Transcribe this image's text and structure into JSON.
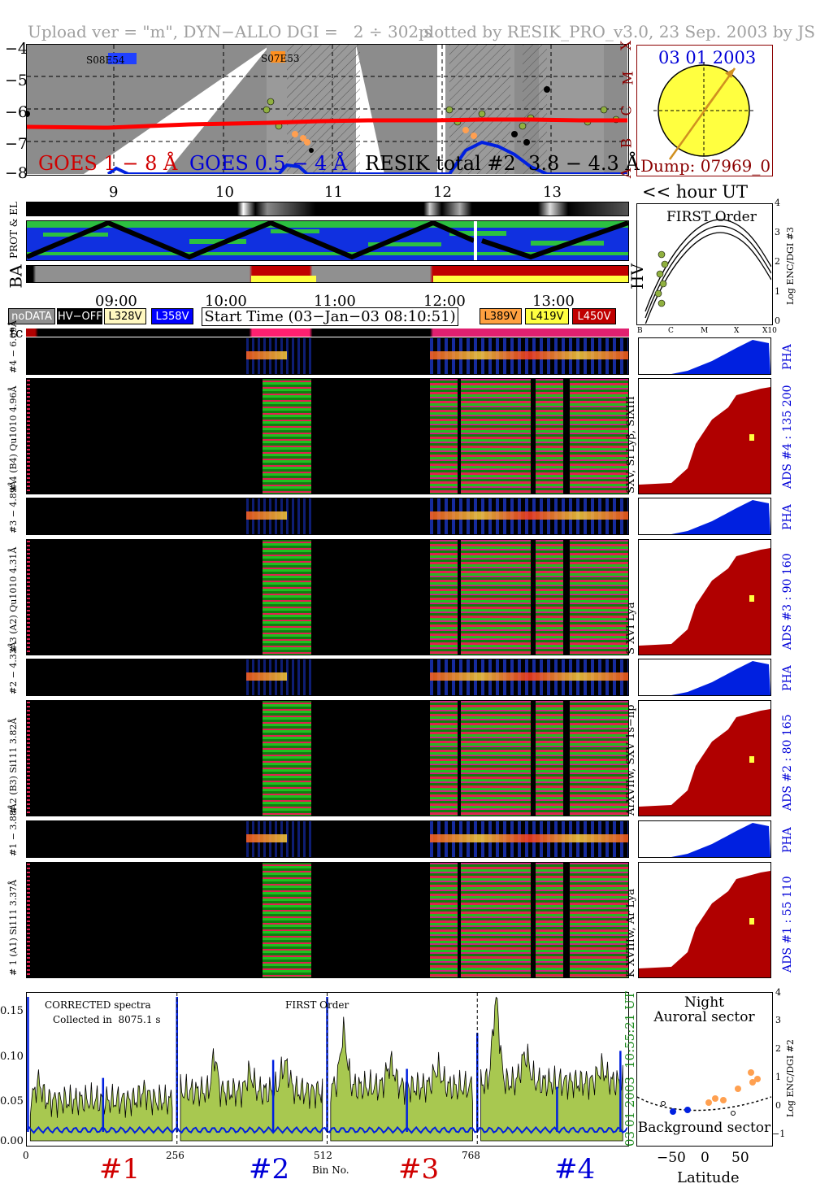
{
  "header": {
    "upload": "Upload ver = \"m\", DYN−ALLO DGI =   2 ÷ 302 s",
    "plotted": "plotted by RESIK_PRO_v3.0, 23 Sep. 2003 by JS"
  },
  "goes": {
    "y_ticks": [
      "−4",
      "−5",
      "−6",
      "−7",
      "−8"
    ],
    "class_letters": [
      "X",
      "M",
      "C",
      "B",
      "A"
    ],
    "labels": {
      "g18": "GOES 1 − 8 Å",
      "g054": "GOES 0.5 − 4 Å",
      "resik": "RESIK total #2  3.8 − 4.3 Å"
    },
    "saa1": "S08E54",
    "saa2": "S07E53",
    "hour_ticks": [
      "9",
      "10",
      "11",
      "12",
      "13"
    ],
    "hour_label": "<< hour UT",
    "colors": {
      "goes18": "#ff0000",
      "goes054": "#0020e0",
      "resik": "#90b040"
    }
  },
  "sun": {
    "date": "03 01 2003",
    "dump": "Dump: 07969_0"
  },
  "first_order": {
    "title": "FIRST Order",
    "ylabel": "Log ENC/DGI #3",
    "y_ticks": [
      "4",
      "3",
      "2",
      "1",
      "0"
    ],
    "x_ticks": [
      "B",
      "C",
      "M",
      "X",
      "X10"
    ]
  },
  "status_strip": {
    "prot_label": "PROT & EL",
    "ba_label": "BA",
    "hv_label": "HV"
  },
  "time_axis": {
    "ticks": [
      "09:00",
      "10:00",
      "11:00",
      "12:00",
      "13:00"
    ],
    "start_time": "Start Time (03−Jan−03 08:10:51)"
  },
  "legend": [
    {
      "label": "noDATA",
      "bg": "#909090",
      "fg": "#ffffff"
    },
    {
      "label": "HV−OFF",
      "bg": "#000000",
      "fg": "#ffffff"
    },
    {
      "label": "L328V",
      "bg": "#fff8c0",
      "fg": "#000000"
    },
    {
      "label": "L358V",
      "bg": "#0000ff",
      "fg": "#ffffff"
    },
    {
      "label": "L389V",
      "bg": "#ffa040",
      "fg": "#000000"
    },
    {
      "label": "L419V",
      "bg": "#ffff40",
      "fg": "#000000"
    },
    {
      "label": "L450V",
      "bg": "#c00000",
      "fg": "#ffffff"
    }
  ],
  "tc_label": "tc",
  "channels": [
    {
      "pha_label": "#4 − 6.09Å",
      "main_label": "# 4 (B4) Qu1010 4.96Å",
      "lines": "SXV, Si Lyβ, SiXIII",
      "ads": "ADS #4 :   135 200",
      "pha": "PHA"
    },
    {
      "pha_label": "#3 − 4.89Å",
      "main_label": "# 3 (A2) Qu1010 4.31Å",
      "lines": "S XVI Lya",
      "ads": "ADS #3 :   90 160",
      "pha": "PHA"
    },
    {
      "pha_label": "#2 − 4.33Å",
      "main_label": "# 2 (B3) Si111 3.82Å",
      "lines": "ArXVIIw, SXV 1s−np",
      "ads": "ADS #2 :   80 165",
      "pha": "PHA"
    },
    {
      "pha_label": "#1 − 3.88Å",
      "main_label": "# 1 (A1) Si111 3.37Å",
      "lines": "K XVIIIw, Ar Lya",
      "ads": "ADS #1 :   55 110",
      "pha": "PHA"
    }
  ],
  "spectrum": {
    "title": "CORRECTED spectra",
    "collected": "Collected in  8075.1 s",
    "order": "FIRST Order",
    "y_ticks": [
      "0.15",
      "0.10",
      "0.05",
      "0.00"
    ],
    "x_ticks": [
      "0",
      "256",
      "512",
      "768"
    ],
    "xlabel": "Bin No.",
    "date": "03 01 2003",
    "time": "10:55:21 UT",
    "channel_labels": [
      "#1",
      "#2",
      "#3",
      "#4"
    ]
  },
  "latitude": {
    "title1": "Night",
    "title2": "Auroral sector",
    "bottom": "Background sector",
    "xlabel": "Latitude",
    "ylabel": "Log ENC/DGI #2",
    "x_ticks": [
      "−50",
      "0",
      "50"
    ],
    "y_ticks": [
      "4",
      "3",
      "2",
      "1",
      "0",
      "−1"
    ]
  }
}
